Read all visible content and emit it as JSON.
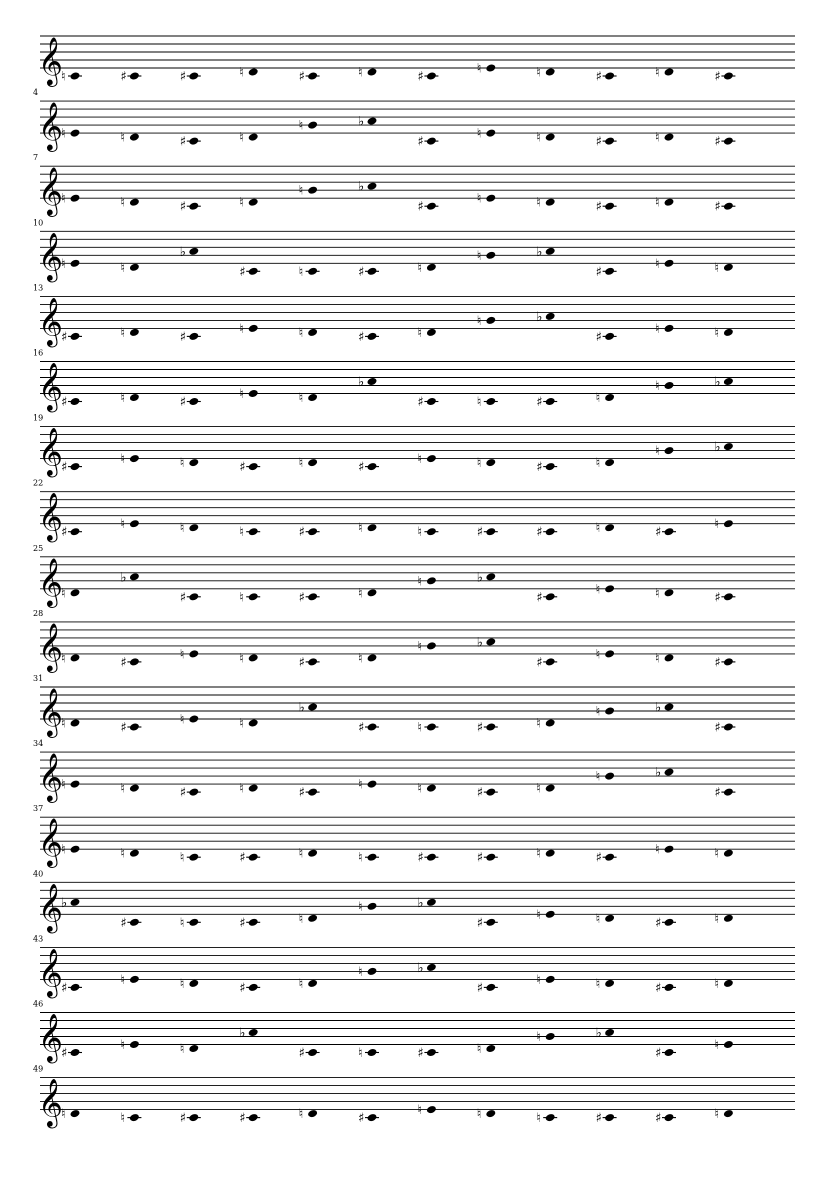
{
  "score": {
    "clef_icon": "treble-clef-icon",
    "systems": [
      {
        "measure_number": "",
        "notes": [
          "C",
          "C#",
          "C#",
          "D",
          "C#",
          "D",
          "C#",
          "E",
          "D",
          "C#",
          "D",
          "C#"
        ]
      },
      {
        "measure_number": "4",
        "notes": [
          "E",
          "D",
          "C#",
          "D",
          "G",
          "Ab",
          "C#",
          "E",
          "D",
          "C#",
          "D",
          "C#"
        ]
      },
      {
        "measure_number": "7",
        "notes": [
          "E",
          "D",
          "C#",
          "D",
          "G",
          "Ab",
          "C#",
          "E",
          "D",
          "C#",
          "D",
          "C#"
        ]
      },
      {
        "measure_number": "10",
        "notes": [
          "E",
          "D",
          "Ab",
          "C#",
          "C",
          "C#",
          "D",
          "G",
          "Ab",
          "C#",
          "E",
          "D"
        ]
      },
      {
        "measure_number": "13",
        "notes": [
          "C#",
          "D",
          "C#",
          "E",
          "D",
          "C#",
          "D",
          "G",
          "Ab",
          "C#",
          "E",
          "D"
        ]
      },
      {
        "measure_number": "16",
        "notes": [
          "C#",
          "D",
          "C#",
          "E",
          "D",
          "Ab",
          "C#",
          "C",
          "C#",
          "D",
          "G",
          "Ab"
        ]
      },
      {
        "measure_number": "19",
        "notes": [
          "C#",
          "E",
          "D",
          "C#",
          "D",
          "C#",
          "E",
          "D",
          "C#",
          "D",
          "G",
          "Ab"
        ]
      },
      {
        "measure_number": "22",
        "notes": [
          "C#",
          "E",
          "D",
          "C",
          "C#",
          "D",
          "C",
          "C#",
          "C#",
          "D",
          "C#",
          "E"
        ]
      },
      {
        "measure_number": "25",
        "notes": [
          "D",
          "Ab",
          "C#",
          "C",
          "C#",
          "D",
          "G",
          "Ab",
          "C#",
          "E",
          "D",
          "C#"
        ]
      },
      {
        "measure_number": "28",
        "notes": [
          "D",
          "C#",
          "E",
          "D",
          "C#",
          "D",
          "G",
          "Ab",
          "C#",
          "E",
          "D",
          "C#"
        ]
      },
      {
        "measure_number": "31",
        "notes": [
          "D",
          "C#",
          "E",
          "D",
          "Ab",
          "C#",
          "C",
          "C#",
          "D",
          "G",
          "Ab",
          "C#"
        ]
      },
      {
        "measure_number": "34",
        "notes": [
          "E",
          "D",
          "C#",
          "D",
          "C#",
          "E",
          "D",
          "C#",
          "D",
          "G",
          "Ab",
          "C#"
        ]
      },
      {
        "measure_number": "37",
        "notes": [
          "E",
          "D",
          "C",
          "C#",
          "D",
          "C",
          "C#",
          "C#",
          "D",
          "C#",
          "E",
          "D"
        ]
      },
      {
        "measure_number": "40",
        "notes": [
          "Ab",
          "C#",
          "C",
          "C#",
          "D",
          "G",
          "Ab",
          "C#",
          "E",
          "D",
          "C#",
          "D"
        ]
      },
      {
        "measure_number": "43",
        "notes": [
          "C#",
          "E",
          "D",
          "C#",
          "D",
          "G",
          "Ab",
          "C#",
          "E",
          "D",
          "C#",
          "D"
        ]
      },
      {
        "measure_number": "46",
        "notes": [
          "C#",
          "E",
          "D",
          "Ab",
          "C#",
          "C",
          "C#",
          "D",
          "G",
          "Ab",
          "C#",
          "E"
        ]
      },
      {
        "measure_number": "49",
        "notes": [
          "D",
          "C",
          "C#",
          "C#",
          "D",
          "C#",
          "E",
          "D",
          "C",
          "C#",
          "C#",
          "D"
        ]
      }
    ]
  }
}
